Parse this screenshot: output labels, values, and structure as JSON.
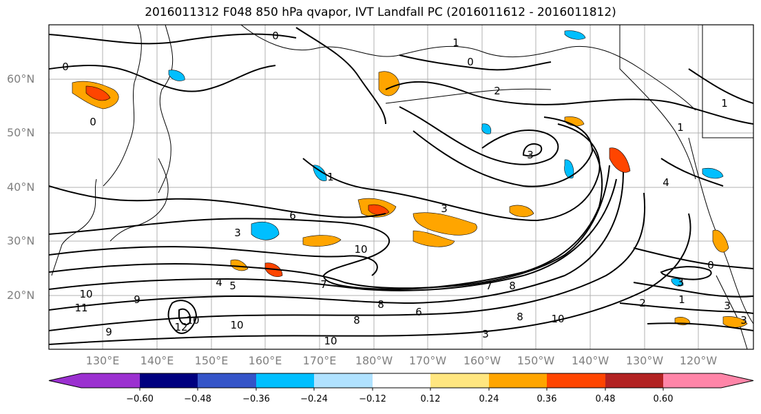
{
  "title": "2016011312 F048 850 hPa qvapor, IVT Landfall PC (2016011612 - 2016011812)",
  "lat_labels": [
    "60°N",
    "50°N",
    "40°N",
    "30°N",
    "20°N"
  ],
  "lon_labels": [
    "130°E",
    "140°E",
    "150°E",
    "160°E",
    "170°E",
    "180°W",
    "170°W",
    "160°W",
    "150°W",
    "140°W",
    "130°W",
    "120°W"
  ],
  "colorbar": {
    "ticks": [
      "−0.60",
      "−0.48",
      "−0.36",
      "−0.24",
      "−0.12",
      "0.12",
      "0.24",
      "0.36",
      "0.48",
      "0.60"
    ],
    "colors": [
      "#9b30d0",
      "#00007f",
      "#3454c8",
      "#00bfff",
      "#b0e2ff",
      "#ffffff",
      "#ffe680",
      "#ffa500",
      "#ff4500",
      "#b22222",
      "#ff85a8"
    ]
  },
  "contour_labels": [
    "0",
    "0",
    "0",
    "0",
    "1",
    "1",
    "1",
    "1",
    "2",
    "3",
    "3",
    "4",
    "6",
    "3",
    "10",
    "7",
    "8",
    "7",
    "8",
    "6",
    "4",
    "9",
    "10",
    "9",
    "10",
    "11",
    "10",
    "8",
    "3",
    "2",
    "1",
    "0",
    "3",
    "3",
    "10",
    "12",
    "10",
    "8",
    "5",
    "3"
  ],
  "colors": {
    "land_line": "#000000",
    "grid": "#b0b0b0",
    "contour": "#000000",
    "axis_label": "#808080"
  }
}
